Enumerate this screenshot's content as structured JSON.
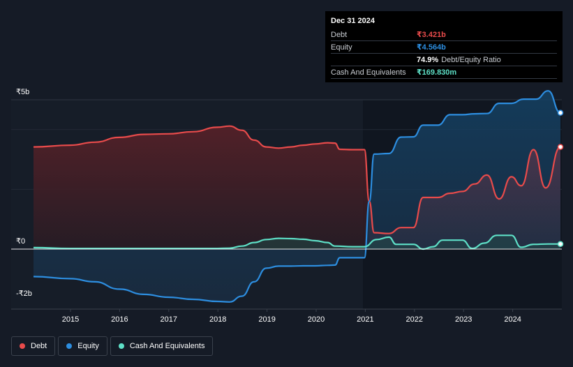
{
  "chart_data": {
    "type": "area",
    "title": "",
    "xlabel": "",
    "ylabel": "",
    "x_ticks": [
      "2015",
      "2016",
      "2017",
      "2018",
      "2019",
      "2020",
      "2021",
      "2022",
      "2023",
      "2024"
    ],
    "y_ticks": [
      "₹5b",
      "₹0",
      "-₹2b"
    ],
    "ylim": [
      -2,
      5
    ],
    "xlim": [
      2014.25,
      2025.0
    ],
    "legend_position": "bottom-left",
    "series": [
      {
        "name": "Debt",
        "color": "#e84b4b",
        "points": [
          [
            2014.25,
            3.42
          ],
          [
            2015.0,
            3.48
          ],
          [
            2015.5,
            3.58
          ],
          [
            2016.0,
            3.74
          ],
          [
            2016.5,
            3.84
          ],
          [
            2017.0,
            3.86
          ],
          [
            2017.5,
            3.93
          ],
          [
            2018.0,
            4.08
          ],
          [
            2018.25,
            4.12
          ],
          [
            2018.5,
            3.98
          ],
          [
            2018.75,
            3.65
          ],
          [
            2019.0,
            3.42
          ],
          [
            2019.25,
            3.38
          ],
          [
            2019.5,
            3.42
          ],
          [
            2019.75,
            3.48
          ],
          [
            2020.0,
            3.52
          ],
          [
            2020.25,
            3.56
          ],
          [
            2020.4,
            3.55
          ],
          [
            2020.5,
            3.34
          ],
          [
            2020.75,
            3.33
          ],
          [
            2021.0,
            3.33
          ],
          [
            2021.1,
            1.6
          ],
          [
            2021.2,
            0.55
          ],
          [
            2021.5,
            0.52
          ],
          [
            2021.75,
            0.72
          ],
          [
            2022.0,
            0.72
          ],
          [
            2022.2,
            1.73
          ],
          [
            2022.5,
            1.73
          ],
          [
            2022.75,
            1.87
          ],
          [
            2023.0,
            1.93
          ],
          [
            2023.25,
            2.18
          ],
          [
            2023.5,
            2.48
          ],
          [
            2023.75,
            1.68
          ],
          [
            2024.0,
            2.42
          ],
          [
            2024.2,
            2.12
          ],
          [
            2024.45,
            3.33
          ],
          [
            2024.7,
            2.05
          ],
          [
            2025.0,
            3.421
          ]
        ]
      },
      {
        "name": "Equity",
        "color": "#2d8ee0",
        "points": [
          [
            2014.25,
            -1.05
          ],
          [
            2015.0,
            -1.13
          ],
          [
            2015.5,
            -1.25
          ],
          [
            2016.0,
            -1.53
          ],
          [
            2016.5,
            -1.73
          ],
          [
            2017.0,
            -1.84
          ],
          [
            2017.5,
            -1.92
          ],
          [
            2018.0,
            -2.0
          ],
          [
            2018.25,
            -2.02
          ],
          [
            2018.5,
            -1.8
          ],
          [
            2018.75,
            -1.25
          ],
          [
            2019.0,
            -0.73
          ],
          [
            2019.25,
            -0.65
          ],
          [
            2019.5,
            -0.65
          ],
          [
            2019.75,
            -0.64
          ],
          [
            2020.0,
            -0.64
          ],
          [
            2020.25,
            -0.62
          ],
          [
            2020.4,
            -0.61
          ],
          [
            2020.5,
            -0.33
          ],
          [
            2020.75,
            -0.33
          ],
          [
            2021.0,
            -0.33
          ],
          [
            2021.1,
            1.6
          ],
          [
            2021.2,
            3.18
          ],
          [
            2021.5,
            3.2
          ],
          [
            2021.75,
            3.75
          ],
          [
            2022.0,
            3.76
          ],
          [
            2022.2,
            4.15
          ],
          [
            2022.5,
            4.15
          ],
          [
            2022.75,
            4.5
          ],
          [
            2023.0,
            4.5
          ],
          [
            2023.25,
            4.53
          ],
          [
            2023.5,
            4.54
          ],
          [
            2023.75,
            4.88
          ],
          [
            2024.0,
            4.88
          ],
          [
            2024.25,
            5.02
          ],
          [
            2024.5,
            5.02
          ],
          [
            2024.75,
            5.3
          ],
          [
            2025.0,
            4.564
          ]
        ]
      },
      {
        "name": "Cash And Equivalents",
        "color": "#5ee0c7",
        "points": [
          [
            2014.25,
            0.05
          ],
          [
            2015.0,
            0.02
          ],
          [
            2016.0,
            0.02
          ],
          [
            2017.0,
            0.02
          ],
          [
            2018.0,
            0.02
          ],
          [
            2018.25,
            0.03
          ],
          [
            2018.5,
            0.1
          ],
          [
            2018.75,
            0.22
          ],
          [
            2019.0,
            0.32
          ],
          [
            2019.25,
            0.36
          ],
          [
            2019.5,
            0.35
          ],
          [
            2019.75,
            0.33
          ],
          [
            2020.0,
            0.28
          ],
          [
            2020.25,
            0.22
          ],
          [
            2020.4,
            0.1
          ],
          [
            2020.75,
            0.08
          ],
          [
            2021.0,
            0.08
          ],
          [
            2021.25,
            0.32
          ],
          [
            2021.5,
            0.4
          ],
          [
            2021.65,
            0.16
          ],
          [
            2022.0,
            0.16
          ],
          [
            2022.2,
            0.0
          ],
          [
            2022.4,
            0.08
          ],
          [
            2022.6,
            0.3
          ],
          [
            2023.0,
            0.3
          ],
          [
            2023.2,
            0.02
          ],
          [
            2023.45,
            0.2
          ],
          [
            2023.7,
            0.46
          ],
          [
            2024.0,
            0.46
          ],
          [
            2024.2,
            0.06
          ],
          [
            2024.45,
            0.16
          ],
          [
            2024.75,
            0.17
          ],
          [
            2025.0,
            0.16983
          ]
        ]
      }
    ]
  },
  "tooltip": {
    "date": "Dec 31 2024",
    "rows": [
      {
        "label": "Debt",
        "value": "₹3.421b",
        "color": "#e84b4b",
        "extra": ""
      },
      {
        "label": "Equity",
        "value": "₹4.564b",
        "color": "#2d8ee0",
        "extra": ""
      },
      {
        "label": "",
        "value": "74.9%",
        "color": "#ffffff",
        "extra": "Debt/Equity Ratio"
      },
      {
        "label": "Cash And Equivalents",
        "value": "₹169.830m",
        "color": "#5ee0c7",
        "extra": ""
      }
    ]
  },
  "legend": {
    "items": [
      {
        "label": "Debt",
        "color": "#e84b4b"
      },
      {
        "label": "Equity",
        "color": "#2d8ee0"
      },
      {
        "label": "Cash And Equivalents",
        "color": "#5ee0c7"
      }
    ]
  }
}
